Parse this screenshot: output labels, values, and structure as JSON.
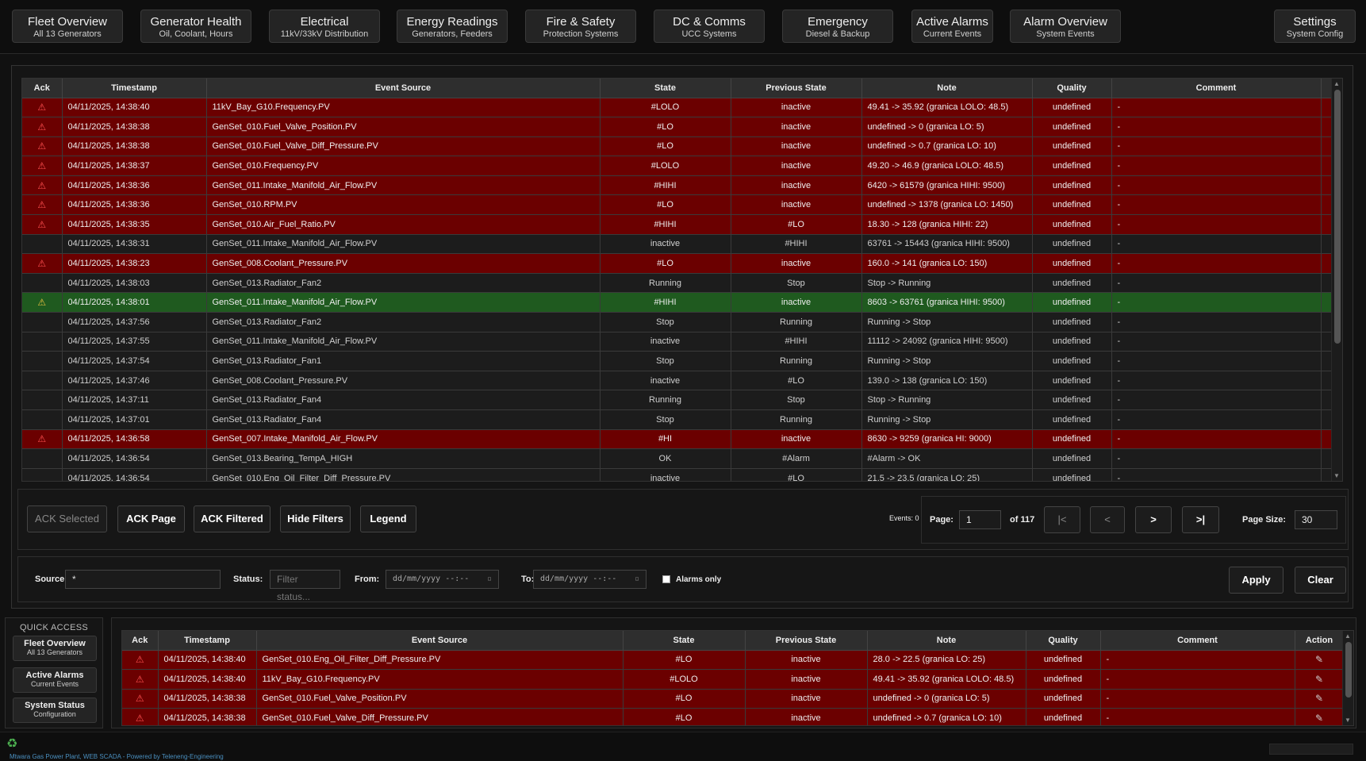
{
  "nav": [
    {
      "title": "Fleet Overview",
      "sub": "All 13 Generators"
    },
    {
      "title": "Generator Health",
      "sub": "Oil, Coolant, Hours"
    },
    {
      "title": "Electrical",
      "sub": "11kV/33kV Distribution"
    },
    {
      "title": "Energy Readings",
      "sub": "Generators, Feeders"
    },
    {
      "title": "Fire & Safety",
      "sub": "Protection Systems"
    },
    {
      "title": "DC & Comms",
      "sub": "UCC Systems"
    },
    {
      "title": "Emergency",
      "sub": "Diesel & Backup"
    },
    {
      "title": "Active Alarms",
      "sub": "Current Events"
    },
    {
      "title": "Alarm Overview",
      "sub": "System Events"
    },
    {
      "title": "Settings",
      "sub": "System Config"
    }
  ],
  "events_table": {
    "headers": [
      "Ack",
      "Timestamp",
      "Event Source",
      "State",
      "Previous State",
      "Note",
      "Quality",
      "Comment",
      "Action"
    ],
    "rows": [
      {
        "style": "red",
        "ack": "warning-icon",
        "ts": "04/11/2025, 14:38:40",
        "src": "11kV_Bay_G10.Frequency.PV",
        "state": "#LOLO",
        "prev": "inactive",
        "note": "49.41 -> 35.92 (granica LOLO: 48.5)",
        "quality": "undefined",
        "comment": "-"
      },
      {
        "style": "red",
        "ack": "warning-icon",
        "ts": "04/11/2025, 14:38:38",
        "src": "GenSet_010.Fuel_Valve_Position.PV",
        "state": "#LO",
        "prev": "inactive",
        "note": "undefined -> 0 (granica LO: 5)",
        "quality": "undefined",
        "comment": "-"
      },
      {
        "style": "red",
        "ack": "warning-icon",
        "ts": "04/11/2025, 14:38:38",
        "src": "GenSet_010.Fuel_Valve_Diff_Pressure.PV",
        "state": "#LO",
        "prev": "inactive",
        "note": "undefined -> 0.7 (granica LO: 10)",
        "quality": "undefined",
        "comment": "-"
      },
      {
        "style": "red",
        "ack": "warning-icon",
        "ts": "04/11/2025, 14:38:37",
        "src": "GenSet_010.Frequency.PV",
        "state": "#LOLO",
        "prev": "inactive",
        "note": "49.20 -> 46.9 (granica LOLO: 48.5)",
        "quality": "undefined",
        "comment": "-"
      },
      {
        "style": "red",
        "ack": "warning-icon",
        "ts": "04/11/2025, 14:38:36",
        "src": "GenSet_011.Intake_Manifold_Air_Flow.PV",
        "state": "#HIHI",
        "prev": "inactive",
        "note": "6420 -> 61579 (granica HIHI: 9500)",
        "quality": "undefined",
        "comment": "-"
      },
      {
        "style": "red",
        "ack": "warning-icon",
        "ts": "04/11/2025, 14:38:36",
        "src": "GenSet_010.RPM.PV",
        "state": "#LO",
        "prev": "inactive",
        "note": "undefined -> 1378 (granica LO: 1450)",
        "quality": "undefined",
        "comment": "-"
      },
      {
        "style": "red",
        "ack": "warning-icon",
        "ts": "04/11/2025, 14:38:35",
        "src": "GenSet_010.Air_Fuel_Ratio.PV",
        "state": "#HIHI",
        "prev": "#LO",
        "note": "18.30 -> 128 (granica HIHI: 22)",
        "quality": "undefined",
        "comment": "-"
      },
      {
        "style": "dark",
        "ack": "",
        "ts": "04/11/2025, 14:38:31",
        "src": "GenSet_011.Intake_Manifold_Air_Flow.PV",
        "state": "inactive",
        "prev": "#HIHI",
        "note": "63761 -> 15443 (granica HIHI: 9500)",
        "quality": "undefined",
        "comment": "-"
      },
      {
        "style": "red",
        "ack": "warning-icon",
        "ts": "04/11/2025, 14:38:23",
        "src": "GenSet_008.Coolant_Pressure.PV",
        "state": "#LO",
        "prev": "inactive",
        "note": "160.0 -> 141 (granica LO: 150)",
        "quality": "undefined",
        "comment": "-"
      },
      {
        "style": "dark",
        "ack": "",
        "ts": "04/11/2025, 14:38:03",
        "src": "GenSet_013.Radiator_Fan2",
        "state": "Running",
        "prev": "Stop",
        "note": "Stop -> Running",
        "quality": "undefined",
        "comment": "-"
      },
      {
        "style": "green",
        "ack": "warning-icon-yellow",
        "ts": "04/11/2025, 14:38:01",
        "src": "GenSet_011.Intake_Manifold_Air_Flow.PV",
        "state": "#HIHI",
        "prev": "inactive",
        "note": "8603 -> 63761 (granica HIHI: 9500)",
        "quality": "undefined",
        "comment": "-"
      },
      {
        "style": "dark",
        "ack": "",
        "ts": "04/11/2025, 14:37:56",
        "src": "GenSet_013.Radiator_Fan2",
        "state": "Stop",
        "prev": "Running",
        "note": "Running -> Stop",
        "quality": "undefined",
        "comment": "-"
      },
      {
        "style": "dark",
        "ack": "",
        "ts": "04/11/2025, 14:37:55",
        "src": "GenSet_011.Intake_Manifold_Air_Flow.PV",
        "state": "inactive",
        "prev": "#HIHI",
        "note": "11112 -> 24092 (granica HIHI: 9500)",
        "quality": "undefined",
        "comment": "-"
      },
      {
        "style": "dark",
        "ack": "",
        "ts": "04/11/2025, 14:37:54",
        "src": "GenSet_013.Radiator_Fan1",
        "state": "Stop",
        "prev": "Running",
        "note": "Running -> Stop",
        "quality": "undefined",
        "comment": "-"
      },
      {
        "style": "dark",
        "ack": "",
        "ts": "04/11/2025, 14:37:46",
        "src": "GenSet_008.Coolant_Pressure.PV",
        "state": "inactive",
        "prev": "#LO",
        "note": "139.0 -> 138 (granica LO: 150)",
        "quality": "undefined",
        "comment": "-"
      },
      {
        "style": "dark",
        "ack": "",
        "ts": "04/11/2025, 14:37:11",
        "src": "GenSet_013.Radiator_Fan4",
        "state": "Running",
        "prev": "Stop",
        "note": "Stop -> Running",
        "quality": "undefined",
        "comment": "-"
      },
      {
        "style": "dark",
        "ack": "",
        "ts": "04/11/2025, 14:37:01",
        "src": "GenSet_013.Radiator_Fan4",
        "state": "Stop",
        "prev": "Running",
        "note": "Running -> Stop",
        "quality": "undefined",
        "comment": "-"
      },
      {
        "style": "red",
        "ack": "warning-icon",
        "ts": "04/11/2025, 14:36:58",
        "src": "GenSet_007.Intake_Manifold_Air_Flow.PV",
        "state": "#HI",
        "prev": "inactive",
        "note": "8630 -> 9259 (granica HI: 9000)",
        "quality": "undefined",
        "comment": "-"
      },
      {
        "style": "dark",
        "ack": "",
        "ts": "04/11/2025, 14:36:54",
        "src": "GenSet_013.Bearing_TempA_HIGH",
        "state": "OK",
        "prev": "#Alarm",
        "note": "#Alarm -> OK",
        "quality": "undefined",
        "comment": "-"
      },
      {
        "style": "dark",
        "ack": "",
        "ts": "04/11/2025, 14:36:54",
        "src": "GenSet_010.Eng_Oil_Filter_Diff_Pressure.PV",
        "state": "inactive",
        "prev": "#LO",
        "note": "21.5 -> 23.5 (granica LO: 25)",
        "quality": "undefined",
        "comment": "-"
      }
    ]
  },
  "toolbar": {
    "ack_selected": "ACK Selected",
    "ack_page": "ACK Page",
    "ack_filtered": "ACK Filtered",
    "hide_filters": "Hide Filters",
    "legend": "Legend",
    "events_count": "Events: 0",
    "page_label": "Page:",
    "page_value": "1",
    "page_of": "of 117",
    "first": "|<",
    "prev": "<",
    "next": ">",
    "last": ">|",
    "page_size_label": "Page Size:",
    "page_size_value": "30"
  },
  "filters": {
    "source_label": "Source:",
    "source_value": "*",
    "status_label": "Status:",
    "status_placeholder": "Filter status...",
    "from_label": "From:",
    "from_placeholder": "dd/mm/yyyy --:--",
    "to_label": "To:",
    "to_placeholder": "dd/mm/yyyy --:--",
    "alarms_only": "Alarms only",
    "apply": "Apply",
    "clear": "Clear"
  },
  "quick_access": {
    "title": "QUICK ACCESS",
    "items": [
      {
        "title": "Fleet Overview",
        "sub": "All 13 Generators"
      },
      {
        "title": "Active Alarms",
        "sub": "Current Events"
      },
      {
        "title": "System Status",
        "sub": "Configuration"
      }
    ]
  },
  "active_table": {
    "headers": [
      "Ack",
      "Timestamp",
      "Event Source",
      "State",
      "Previous State",
      "Note",
      "Quality",
      "Comment",
      "Action"
    ],
    "rows": [
      {
        "ts": "04/11/2025, 14:38:40",
        "src": "GenSet_010.Eng_Oil_Filter_Diff_Pressure.PV",
        "state": "#LO",
        "prev": "inactive",
        "note": "28.0 -> 22.5 (granica LO: 25)",
        "quality": "undefined",
        "comment": "-"
      },
      {
        "ts": "04/11/2025, 14:38:40",
        "src": "11kV_Bay_G10.Frequency.PV",
        "state": "#LOLO",
        "prev": "inactive",
        "note": "49.41 -> 35.92 (granica LOLO: 48.5)",
        "quality": "undefined",
        "comment": "-"
      },
      {
        "ts": "04/11/2025, 14:38:38",
        "src": "GenSet_010.Fuel_Valve_Position.PV",
        "state": "#LO",
        "prev": "inactive",
        "note": "undefined -> 0 (granica LO: 5)",
        "quality": "undefined",
        "comment": "-"
      },
      {
        "ts": "04/11/2025, 14:38:38",
        "src": "GenSet_010.Fuel_Valve_Diff_Pressure.PV",
        "state": "#LO",
        "prev": "inactive",
        "note": "undefined -> 0.7 (granica LO: 10)",
        "quality": "undefined",
        "comment": "-"
      }
    ]
  },
  "footer": {
    "text": "Mtwara Gas Power Plant, WEB SCADA - Powered by Teleneng-Engineering"
  },
  "colors": {
    "alarm_row": "#6b0000",
    "ack_row": "#1f5a1f",
    "normal_row": "#1c1c1c"
  }
}
